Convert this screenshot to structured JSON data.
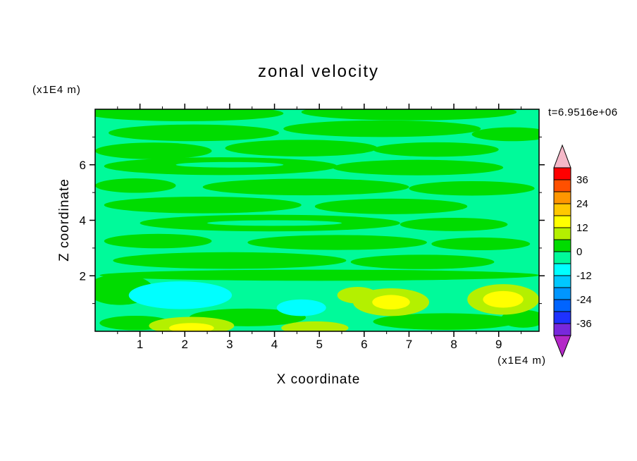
{
  "page": {
    "background": "#ffffff",
    "text_color": "#000000"
  },
  "chart_data": {
    "type": "heatmap",
    "subtype": "filled_contour",
    "title": "zonal velocity",
    "annotation": "t=6.9516e+06",
    "xlabel": "X coordinate",
    "ylabel": "Z coordinate",
    "x_unit_label": "(x1E4 m)",
    "y_unit_label": "(x1E4 m)",
    "xlim": [
      0,
      9.9
    ],
    "ylim": [
      0,
      8
    ],
    "xticks": [
      1,
      2,
      3,
      4,
      5,
      6,
      7,
      8,
      9
    ],
    "xticks_minor": [
      0.5,
      1.5,
      2.5,
      3.5,
      4.5,
      5.5,
      6.5,
      7.5,
      8.5,
      9.5
    ],
    "yticks": [
      2,
      4,
      6
    ],
    "yticks_minor": [
      1,
      3,
      5,
      7
    ],
    "grid": false,
    "colorbar": {
      "position": "right",
      "levels": [
        -42,
        -36,
        -30,
        -24,
        -18,
        -12,
        -6,
        0,
        6,
        12,
        18,
        24,
        30,
        36,
        42
      ],
      "tick_labels": [
        "36",
        "24",
        "12",
        "0",
        "-12",
        "-24",
        "-36"
      ],
      "tick_values": [
        36,
        24,
        12,
        0,
        -12,
        -24,
        -36
      ],
      "colors_low_to_high": [
        "#7828dc",
        "#1e32ff",
        "#0064ff",
        "#0096ff",
        "#00c8ff",
        "#00ffff",
        "#00fa9a",
        "#00dc00",
        "#b4f000",
        "#ffff00",
        "#ffc800",
        "#ff9600",
        "#ff5000",
        "#ff0000"
      ],
      "under_arrow_color": "#b428c8",
      "over_arrow_color": "#f5b8c8"
    },
    "field": {
      "background_color": "#00fa9a",
      "background_level": "-6 to 0",
      "blobs": [
        {
          "x": 2.0,
          "z": 7.85,
          "rx": 2.2,
          "rz": 0.28,
          "ci": 7
        },
        {
          "x": 7.0,
          "z": 7.9,
          "rx": 2.4,
          "rz": 0.3,
          "ci": 7
        },
        {
          "x": 2.2,
          "z": 7.15,
          "rx": 1.9,
          "rz": 0.3,
          "ci": 7
        },
        {
          "x": 6.4,
          "z": 7.3,
          "rx": 2.2,
          "rz": 0.3,
          "ci": 7
        },
        {
          "x": 9.3,
          "z": 7.1,
          "rx": 0.9,
          "rz": 0.25,
          "ci": 7
        },
        {
          "x": 1.3,
          "z": 6.5,
          "rx": 1.3,
          "rz": 0.3,
          "ci": 7
        },
        {
          "x": 4.6,
          "z": 6.6,
          "rx": 1.7,
          "rz": 0.3,
          "ci": 7
        },
        {
          "x": 7.6,
          "z": 6.55,
          "rx": 1.4,
          "rz": 0.26,
          "ci": 7
        },
        {
          "x": 2.8,
          "z": 5.95,
          "rx": 2.6,
          "rz": 0.32,
          "ci": 7
        },
        {
          "x": 7.2,
          "z": 5.9,
          "rx": 1.9,
          "rz": 0.28,
          "ci": 7
        },
        {
          "x": 0.9,
          "z": 5.25,
          "rx": 0.9,
          "rz": 0.26,
          "ci": 7
        },
        {
          "x": 4.7,
          "z": 5.2,
          "rx": 2.3,
          "rz": 0.3,
          "ci": 7
        },
        {
          "x": 8.4,
          "z": 5.15,
          "rx": 1.4,
          "rz": 0.26,
          "ci": 7
        },
        {
          "x": 2.4,
          "z": 4.55,
          "rx": 2.2,
          "rz": 0.3,
          "ci": 7
        },
        {
          "x": 6.6,
          "z": 4.5,
          "rx": 1.7,
          "rz": 0.28,
          "ci": 7
        },
        {
          "x": 3.9,
          "z": 3.9,
          "rx": 2.9,
          "rz": 0.3,
          "ci": 7
        },
        {
          "x": 8.0,
          "z": 3.85,
          "rx": 1.2,
          "rz": 0.24,
          "ci": 7
        },
        {
          "x": 1.4,
          "z": 3.25,
          "rx": 1.2,
          "rz": 0.26,
          "ci": 7
        },
        {
          "x": 5.4,
          "z": 3.2,
          "rx": 2.0,
          "rz": 0.27,
          "ci": 7
        },
        {
          "x": 8.6,
          "z": 3.15,
          "rx": 1.1,
          "rz": 0.23,
          "ci": 7
        },
        {
          "x": 3.0,
          "z": 2.55,
          "rx": 2.6,
          "rz": 0.3,
          "ci": 7
        },
        {
          "x": 7.3,
          "z": 2.5,
          "rx": 1.6,
          "rz": 0.26,
          "ci": 7
        },
        {
          "x": 5.0,
          "z": 2.02,
          "rx": 4.9,
          "rz": 0.2,
          "ci": 7
        },
        {
          "x": 0.55,
          "z": 1.5,
          "rx": 0.75,
          "rz": 0.55,
          "ci": 7
        },
        {
          "x": 3.4,
          "z": 0.5,
          "rx": 1.3,
          "rz": 0.32,
          "ci": 7
        },
        {
          "x": 7.8,
          "z": 0.35,
          "rx": 1.6,
          "rz": 0.3,
          "ci": 7
        },
        {
          "x": 0.9,
          "z": 0.3,
          "rx": 0.8,
          "rz": 0.26,
          "ci": 7
        },
        {
          "x": 9.55,
          "z": 0.45,
          "rx": 0.5,
          "rz": 0.32,
          "ci": 7
        },
        {
          "x": 3.0,
          "z": 6.0,
          "rx": 1.2,
          "rz": 0.1,
          "ci": 6
        },
        {
          "x": 4.0,
          "z": 3.9,
          "rx": 1.5,
          "rz": 0.1,
          "ci": 6
        },
        {
          "x": 1.9,
          "z": 1.3,
          "rx": 1.15,
          "rz": 0.5,
          "ci": 5
        },
        {
          "x": 4.6,
          "z": 0.85,
          "rx": 0.55,
          "rz": 0.3,
          "ci": 5
        },
        {
          "x": 2.15,
          "z": 0.2,
          "rx": 0.95,
          "rz": 0.32,
          "ci": 8
        },
        {
          "x": 4.9,
          "z": 0.12,
          "rx": 0.75,
          "rz": 0.24,
          "ci": 8
        },
        {
          "x": 5.85,
          "z": 1.3,
          "rx": 0.45,
          "rz": 0.3,
          "ci": 8
        },
        {
          "x": 6.6,
          "z": 1.05,
          "rx": 0.85,
          "rz": 0.5,
          "ci": 8
        },
        {
          "x": 9.1,
          "z": 1.15,
          "rx": 0.8,
          "rz": 0.55,
          "ci": 8
        },
        {
          "x": 2.15,
          "z": 0.12,
          "rx": 0.5,
          "rz": 0.18,
          "ci": 9
        },
        {
          "x": 6.6,
          "z": 1.05,
          "rx": 0.42,
          "rz": 0.26,
          "ci": 9
        },
        {
          "x": 9.1,
          "z": 1.15,
          "rx": 0.45,
          "rz": 0.3,
          "ci": 9
        }
      ]
    }
  }
}
